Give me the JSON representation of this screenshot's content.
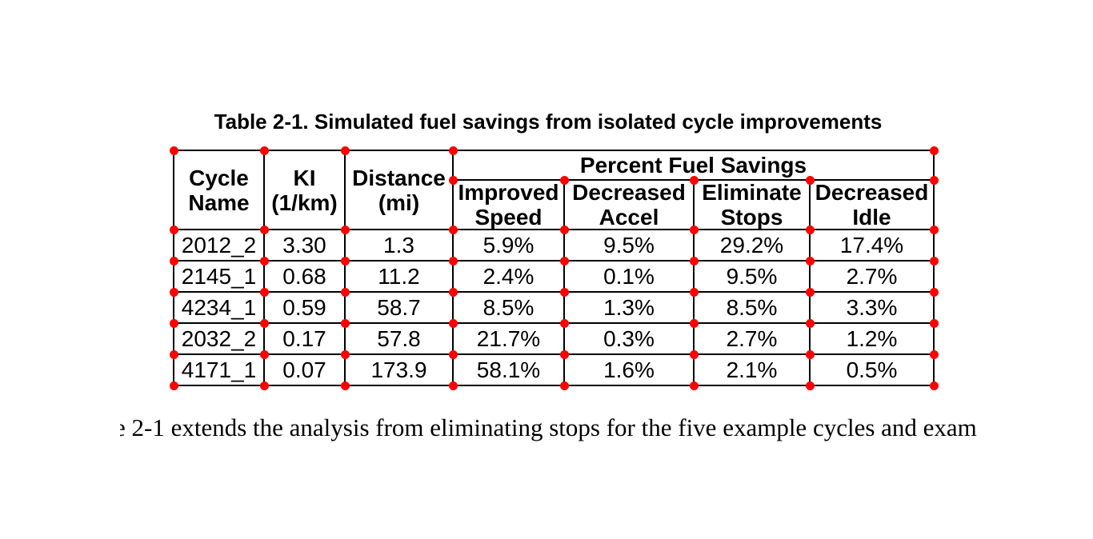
{
  "title": "Table 2-1. Simulated fuel savings from isolated cycle improvements",
  "table": {
    "header": {
      "cycle_name": [
        "Cycle",
        "Name"
      ],
      "ki": [
        "KI",
        "(1/km)"
      ],
      "distance": [
        "Distance",
        "(mi)"
      ],
      "group": "Percent Fuel Savings",
      "sub": [
        [
          "Improved",
          "Speed"
        ],
        [
          "Decreased",
          "Accel"
        ],
        [
          "Eliminate",
          "Stops"
        ],
        [
          "Decreased",
          "Idle"
        ]
      ]
    },
    "rows": [
      [
        "2012_2",
        "3.30",
        "1.3",
        "5.9%",
        "9.5%",
        "29.2%",
        "17.4%"
      ],
      [
        "2145_1",
        "0.68",
        "11.2",
        "2.4%",
        "0.1%",
        "9.5%",
        "2.7%"
      ],
      [
        "4234_1",
        "0.59",
        "58.7",
        "8.5%",
        "1.3%",
        "8.5%",
        "3.3%"
      ],
      [
        "2032_2",
        "0.17",
        "57.8",
        "21.7%",
        "0.3%",
        "2.7%",
        "1.2%"
      ],
      [
        "4171_1",
        "0.07",
        "173.9",
        "58.1%",
        "1.6%",
        "2.1%",
        "0.5%"
      ]
    ]
  },
  "caption": {
    "leading_fragment": "e",
    "text": "2-1 extends the analysis from eliminating stops for the five example cycles and exam"
  },
  "annotations": {
    "marker_color": "#ff0000"
  }
}
